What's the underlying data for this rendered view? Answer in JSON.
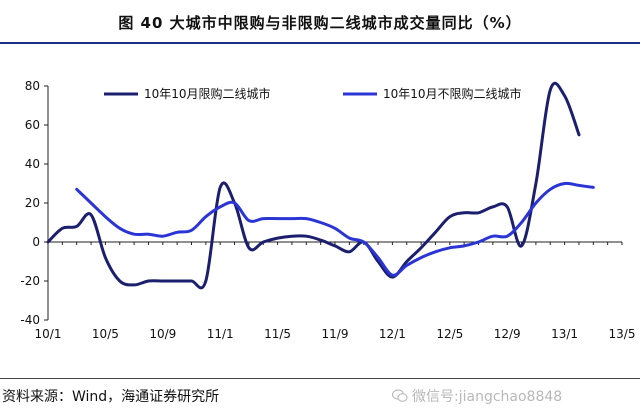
{
  "title": "图   40 大城市中限购与非限购二线城市成交量同比（%）",
  "source": "资料来源：Wind，海通证券研究所",
  "watermark": "微信号:jiangchao8848",
  "chart_data": {
    "type": "line",
    "x": [
      "10/1",
      "10/2",
      "10/3",
      "10/4",
      "10/5",
      "10/6",
      "10/7",
      "10/8",
      "10/9",
      "10/10",
      "10/11",
      "10/12",
      "11/1",
      "11/2",
      "11/3",
      "11/4",
      "11/5",
      "11/6",
      "11/7",
      "11/8",
      "11/9",
      "11/10",
      "11/11",
      "11/12",
      "12/1",
      "12/2",
      "12/3",
      "12/4",
      "12/5",
      "12/6",
      "12/7",
      "12/8",
      "12/9",
      "12/10",
      "12/11",
      "12/12",
      "13/1",
      "13/2",
      "13/3",
      "13/4",
      "13/5"
    ],
    "x_tick_labels": [
      "10/1",
      "10/5",
      "10/9",
      "11/1",
      "11/5",
      "11/9",
      "12/1",
      "12/5",
      "12/9",
      "13/1",
      "13/5"
    ],
    "ylim": [
      -40,
      80
    ],
    "y_ticks": [
      -40,
      -20,
      0,
      20,
      40,
      60,
      80
    ],
    "series": [
      {
        "name": "10年10月限购二线城市",
        "color": "#1b1f6e",
        "values": [
          0,
          7,
          8,
          14,
          -8,
          -20,
          -22,
          -20,
          -20,
          -20,
          -20,
          -20,
          28,
          20,
          -3,
          0,
          2,
          3,
          3,
          1,
          -2,
          -5,
          0,
          -10,
          -18,
          -10,
          -3,
          5,
          13,
          15,
          15,
          18,
          18,
          -2,
          30,
          78,
          75,
          55,
          null,
          null,
          null
        ]
      },
      {
        "name": "10年10月不限购二线城市",
        "color": "#2b35d6",
        "values": [
          null,
          null,
          27,
          20,
          13,
          7,
          4,
          4,
          3,
          5,
          6,
          13,
          18,
          20,
          11,
          12,
          12,
          12,
          12,
          10,
          7,
          2,
          0,
          -8,
          -17,
          -12,
          -8,
          -5,
          -3,
          -2,
          0,
          3,
          3,
          10,
          20,
          27,
          30,
          29,
          28,
          null,
          null
        ]
      }
    ]
  }
}
